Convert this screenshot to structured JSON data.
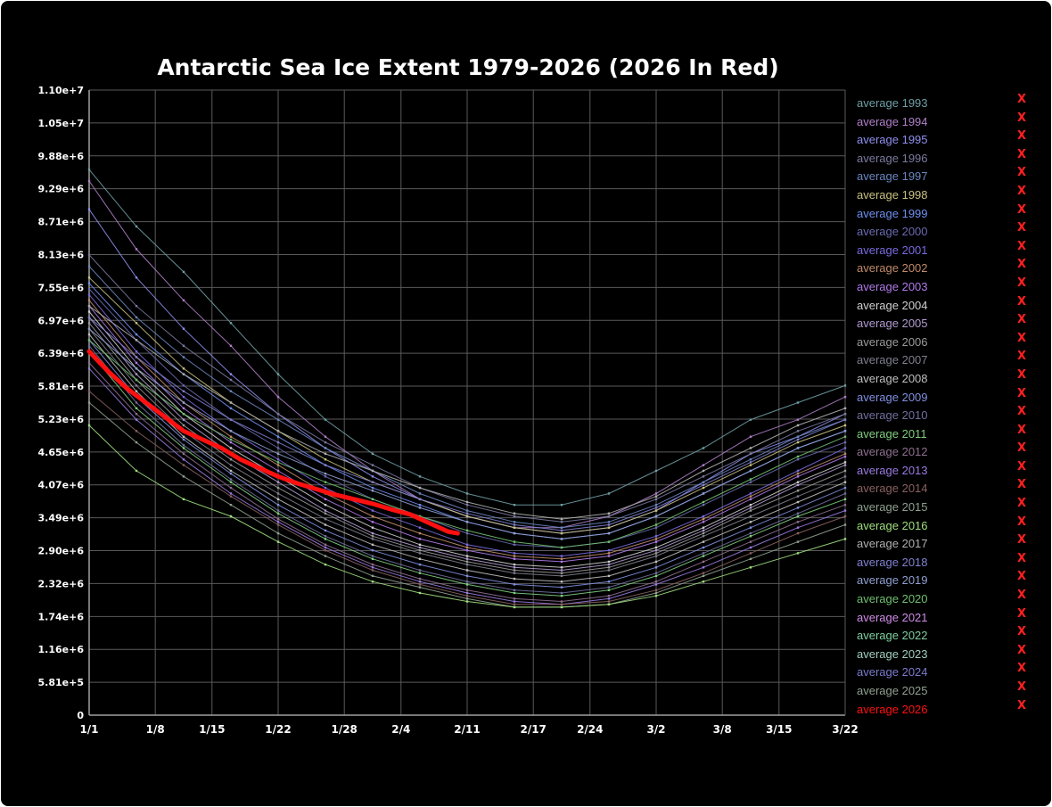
{
  "chart_data": {
    "type": "line",
    "title": "Antarctic Sea Ice Extent 1979-2026 (2026 In Red)",
    "xlabel": "",
    "ylabel": "",
    "x_range_days": [
      0,
      80
    ],
    "ylim": [
      0,
      11000000
    ],
    "y_ticks": [
      "0",
      "5.81e+5",
      "1.16e+6",
      "1.74e+6",
      "2.32e+6",
      "2.90e+6",
      "3.49e+6",
      "4.07e+6",
      "4.65e+6",
      "5.23e+6",
      "5.81e+6",
      "6.39e+6",
      "6.97e+6",
      "7.55e+6",
      "8.13e+6",
      "8.71e+6",
      "9.29e+6",
      "9.88e+6",
      "1.05e+7",
      "1.10e+7"
    ],
    "x_ticks": [
      {
        "label": "1/1",
        "day": 0
      },
      {
        "label": "1/8",
        "day": 7
      },
      {
        "label": "1/15",
        "day": 13
      },
      {
        "label": "1/22",
        "day": 20
      },
      {
        "label": "1/28",
        "day": 27
      },
      {
        "label": "2/4",
        "day": 33
      },
      {
        "label": "2/11",
        "day": 40
      },
      {
        "label": "2/17",
        "day": 47
      },
      {
        "label": "2/24",
        "day": 53
      },
      {
        "label": "3/2",
        "day": 60
      },
      {
        "label": "3/8",
        "day": 67
      },
      {
        "label": "3/15",
        "day": 73
      },
      {
        "label": "3/22",
        "day": 80
      }
    ],
    "grid": true,
    "legend": "right",
    "highlight": {
      "name": "average 2026",
      "color": "#ff1010",
      "x": [
        0,
        2,
        4,
        6,
        8,
        10,
        12,
        14,
        16,
        18,
        20,
        22,
        24,
        26,
        28,
        30,
        32,
        34,
        36,
        38,
        39
      ],
      "y": [
        6400000,
        6050000,
        5750000,
        5500000,
        5250000,
        5000000,
        4850000,
        4700000,
        4500000,
        4350000,
        4200000,
        4080000,
        3980000,
        3880000,
        3800000,
        3720000,
        3620000,
        3530000,
        3380000,
        3230000,
        3200000
      ]
    },
    "historical": {
      "note_x": [
        0,
        5,
        10,
        15,
        20,
        25,
        30,
        35,
        40,
        45,
        50,
        55,
        60,
        65,
        70,
        75,
        80
      ],
      "series": [
        {
          "y": [
            9600000,
            8600000,
            7800000,
            6900000,
            6000000,
            5200000,
            4600000,
            4200000,
            3900000,
            3700000,
            3700000,
            3900000,
            4300000,
            4700000,
            5200000,
            5500000,
            5800000
          ]
        },
        {
          "y": [
            9400000,
            8200000,
            7300000,
            6500000,
            5600000,
            4900000,
            4300000,
            3800000,
            3500000,
            3300000,
            3300000,
            3500000,
            3900000,
            4400000,
            4900000,
            5200000,
            5600000
          ]
        },
        {
          "y": [
            8900000,
            7700000,
            6800000,
            6000000,
            5300000,
            4700000,
            4200000,
            3800000,
            3500000,
            3300000,
            3200000,
            3300000,
            3600000,
            4100000,
            4600000,
            4900000,
            5300000
          ]
        },
        {
          "y": [
            8100000,
            7200000,
            6500000,
            5900000,
            5300000,
            4800000,
            4400000,
            4000000,
            3700000,
            3500000,
            3400000,
            3500000,
            3800000,
            4200000,
            4600000,
            5000000,
            5300000
          ]
        },
        {
          "y": [
            7900000,
            7000000,
            6300000,
            5700000,
            5200000,
            4700000,
            4300000,
            3900000,
            3600000,
            3400000,
            3300000,
            3400000,
            3700000,
            4100000,
            4500000,
            4900000,
            5200000
          ]
        },
        {
          "y": [
            7700000,
            6900000,
            6100000,
            5500000,
            5000000,
            4500000,
            4100000,
            3800000,
            3500000,
            3300000,
            3200000,
            3300000,
            3600000,
            4000000,
            4400000,
            4800000,
            5100000
          ]
        },
        {
          "y": [
            7600000,
            6700000,
            6000000,
            5400000,
            4900000,
            4400000,
            4000000,
            3700000,
            3400000,
            3200000,
            3100000,
            3200000,
            3500000,
            3900000,
            4300000,
            4700000,
            5000000
          ]
        },
        {
          "y": [
            7500000,
            6600000,
            5800000,
            5200000,
            4700000,
            4200000,
            3800000,
            3500000,
            3200000,
            3000000,
            2950000,
            3050000,
            3300000,
            3700000,
            4100000,
            4500000,
            4800000
          ]
        },
        {
          "y": [
            7400000,
            6400000,
            5600000,
            5000000,
            4500000,
            4000000,
            3600000,
            3300000,
            3000000,
            2850000,
            2800000,
            2900000,
            3150000,
            3500000,
            3900000,
            4300000,
            4700000
          ]
        },
        {
          "y": [
            7300000,
            6300000,
            5500000,
            4900000,
            4400000,
            3900000,
            3500000,
            3200000,
            2950000,
            2800000,
            2750000,
            2850000,
            3100000,
            3450000,
            3850000,
            4250000,
            4600000
          ]
        },
        {
          "y": [
            7200000,
            6200000,
            5400000,
            4800000,
            4300000,
            3800000,
            3400000,
            3100000,
            2900000,
            2750000,
            2700000,
            2800000,
            3050000,
            3400000,
            3800000,
            4200000,
            4550000
          ]
        },
        {
          "y": [
            7100000,
            6100000,
            5300000,
            4700000,
            4200000,
            3700000,
            3300000,
            3000000,
            2800000,
            2650000,
            2600000,
            2700000,
            2950000,
            3300000,
            3700000,
            4100000,
            4450000
          ]
        },
        {
          "y": [
            7000000,
            6000000,
            5200000,
            4600000,
            4100000,
            3600000,
            3200000,
            2950000,
            2750000,
            2600000,
            2550000,
            2650000,
            2900000,
            3250000,
            3650000,
            4050000,
            4400000
          ]
        },
        {
          "y": [
            6900000,
            5900000,
            5100000,
            4500000,
            4000000,
            3550000,
            3150000,
            2900000,
            2700000,
            2550000,
            2500000,
            2600000,
            2850000,
            3200000,
            3600000,
            3950000,
            4300000
          ]
        },
        {
          "y": [
            6800000,
            5800000,
            5000000,
            4400000,
            3900000,
            3450000,
            3100000,
            2850000,
            2650000,
            2500000,
            2450000,
            2550000,
            2800000,
            3150000,
            3500000,
            3850000,
            4200000
          ]
        },
        {
          "y": [
            6700000,
            5700000,
            4900000,
            4300000,
            3800000,
            3350000,
            3000000,
            2750000,
            2550000,
            2400000,
            2350000,
            2450000,
            2700000,
            3050000,
            3400000,
            3750000,
            4100000
          ]
        },
        {
          "y": [
            6600000,
            5600000,
            4850000,
            4250000,
            3700000,
            3250000,
            2900000,
            2650000,
            2450000,
            2300000,
            2250000,
            2350000,
            2600000,
            2950000,
            3300000,
            3650000,
            4000000
          ]
        },
        {
          "y": [
            6500000,
            5500000,
            4750000,
            4150000,
            3600000,
            3150000,
            2800000,
            2550000,
            2350000,
            2200000,
            2150000,
            2250000,
            2500000,
            2850000,
            3200000,
            3550000,
            3900000
          ]
        },
        {
          "y": [
            6400000,
            5400000,
            4700000,
            4100000,
            3550000,
            3100000,
            2750000,
            2500000,
            2300000,
            2150000,
            2100000,
            2200000,
            2450000,
            2800000,
            3150000,
            3500000,
            3800000
          ]
        },
        {
          "y": [
            6200000,
            5300000,
            4600000,
            4000000,
            3450000,
            3000000,
            2650000,
            2400000,
            2200000,
            2050000,
            2000000,
            2100000,
            2350000,
            2700000,
            3050000,
            3400000,
            3700000
          ]
        },
        {
          "y": [
            6100000,
            5200000,
            4500000,
            3900000,
            3400000,
            2950000,
            2600000,
            2350000,
            2150000,
            2000000,
            1950000,
            2050000,
            2300000,
            2600000,
            2950000,
            3300000,
            3600000
          ]
        },
        {
          "y": [
            5700000,
            5000000,
            4400000,
            3850000,
            3350000,
            2900000,
            2550000,
            2300000,
            2100000,
            1950000,
            1950000,
            2000000,
            2200000,
            2500000,
            2850000,
            3200000,
            3500000
          ]
        },
        {
          "y": [
            5500000,
            4800000,
            4200000,
            3700000,
            3200000,
            2800000,
            2450000,
            2250000,
            2050000,
            1900000,
            1900000,
            1950000,
            2150000,
            2450000,
            2750000,
            3050000,
            3350000
          ]
        },
        {
          "y": [
            5100000,
            4300000,
            3800000,
            3500000,
            3050000,
            2650000,
            2350000,
            2150000,
            2000000,
            1900000,
            1900000,
            1950000,
            2100000,
            2350000,
            2600000,
            2850000,
            3100000
          ]
        },
        {
          "y": [
            7200000,
            6600000,
            6000000,
            5500000,
            5000000,
            4600000,
            4300000,
            4000000,
            3750000,
            3550000,
            3450000,
            3550000,
            3850000,
            4300000,
            4700000,
            5100000,
            5400000
          ]
        },
        {
          "y": [
            7000000,
            6300000,
            5700000,
            5200000,
            4800000,
            4400000,
            4100000,
            3800000,
            3550000,
            3350000,
            3250000,
            3350000,
            3650000,
            4050000,
            4450000,
            4850000,
            5200000
          ]
        },
        {
          "y": [
            6800000,
            6100000,
            5500000,
            5000000,
            4600000,
            4250000,
            3950000,
            3650000,
            3400000,
            3200000,
            3100000,
            3200000,
            3500000,
            3900000,
            4300000,
            4700000,
            5000000
          ]
        },
        {
          "y": [
            6600000,
            5900000,
            5300000,
            4850000,
            4450000,
            4100000,
            3800000,
            3500000,
            3250000,
            3050000,
            2950000,
            3050000,
            3350000,
            3750000,
            4150000,
            4550000,
            4900000
          ]
        }
      ]
    }
  },
  "legend": {
    "items": [
      {
        "label": "average 1993",
        "color": "#6f9fa5"
      },
      {
        "label": "average 1994",
        "color": "#b07fc8"
      },
      {
        "label": "average 1995",
        "color": "#8f8ff0"
      },
      {
        "label": "average 1996",
        "color": "#7a7aa0"
      },
      {
        "label": "average 1997",
        "color": "#6a86c0"
      },
      {
        "label": "average 1998",
        "color": "#c8c080"
      },
      {
        "label": "average 1999",
        "color": "#6f8ff0"
      },
      {
        "label": "average 2000",
        "color": "#6a6ab0"
      },
      {
        "label": "average 2001",
        "color": "#7a6adf"
      },
      {
        "label": "average 2002",
        "color": "#c08a6a"
      },
      {
        "label": "average 2003",
        "color": "#b07ae8"
      },
      {
        "label": "average 2004",
        "color": "#cfcfcf"
      },
      {
        "label": "average 2005",
        "color": "#b09ad0"
      },
      {
        "label": "average 2006",
        "color": "#9a9a9a"
      },
      {
        "label": "average 2007",
        "color": "#7f7f8f"
      },
      {
        "label": "average 2008",
        "color": "#bfbfbf"
      },
      {
        "label": "average 2009",
        "color": "#7f8fe0"
      },
      {
        "label": "average 2010",
        "color": "#6f6f9f"
      },
      {
        "label": "average 2011",
        "color": "#7fcf7f"
      },
      {
        "label": "average 2012",
        "color": "#8f6f8f"
      },
      {
        "label": "average 2013",
        "color": "#9a7ae0"
      },
      {
        "label": "average 2014",
        "color": "#8a6060"
      },
      {
        "label": "average 2015",
        "color": "#8fa08f"
      },
      {
        "label": "average 2016",
        "color": "#9fdf7f"
      },
      {
        "label": "average 2017",
        "color": "#afafaf"
      },
      {
        "label": "average 2018",
        "color": "#8080d0"
      },
      {
        "label": "average 2019",
        "color": "#8f9fd0"
      },
      {
        "label": "average 2020",
        "color": "#6fbf6f"
      },
      {
        "label": "average 2021",
        "color": "#d08ae8"
      },
      {
        "label": "average 2022",
        "color": "#7fcf9f"
      },
      {
        "label": "average 2023",
        "color": "#9fcfbf"
      },
      {
        "label": "average 2024",
        "color": "#7a7acf"
      },
      {
        "label": "average 2025",
        "color": "#8fa08f"
      },
      {
        "label": "average 2026",
        "color": "#ff1010"
      }
    ],
    "remove_glyph": "X",
    "remove_color": "#ff2020"
  },
  "colors": {
    "background": "#000000",
    "grid": "#5a5a5a",
    "axis": "#a0a0a0",
    "text": "#ffffff"
  }
}
